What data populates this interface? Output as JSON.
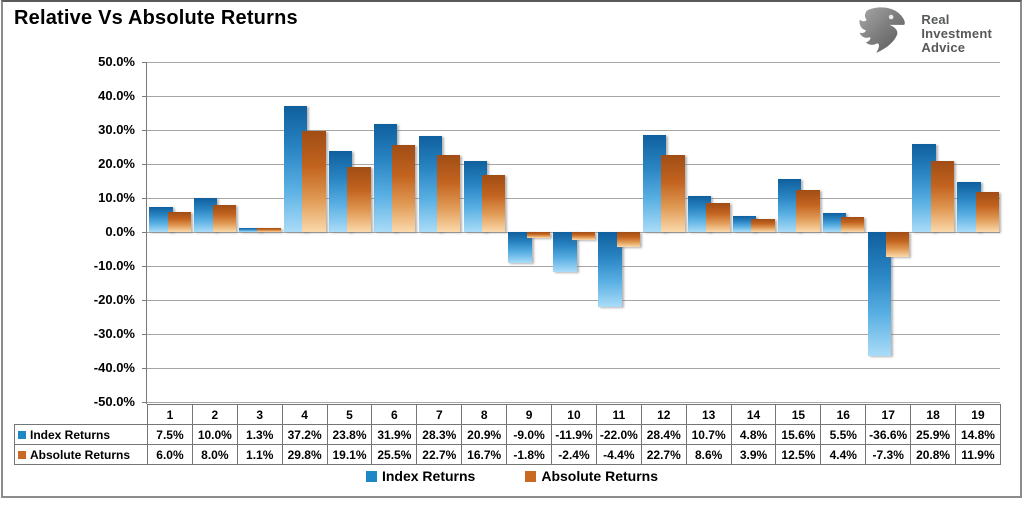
{
  "title": "Relative Vs Absolute Returns",
  "logo": {
    "name": "Real Investment Advice",
    "lines": [
      "Real",
      "Investment",
      "Advice"
    ]
  },
  "chart_data": {
    "type": "bar",
    "title": "Relative Vs Absolute Returns",
    "categories": [
      "1",
      "2",
      "3",
      "4",
      "5",
      "6",
      "7",
      "8",
      "9",
      "10",
      "11",
      "12",
      "13",
      "14",
      "15",
      "16",
      "17",
      "18",
      "19"
    ],
    "series": [
      {
        "name": "Index Returns",
        "color": "#1E88C7",
        "values": [
          7.5,
          10.0,
          1.3,
          37.2,
          23.8,
          31.9,
          28.3,
          20.9,
          -9.0,
          -11.9,
          -22.0,
          28.4,
          10.7,
          4.8,
          15.6,
          5.5,
          -36.6,
          25.9,
          14.8
        ]
      },
      {
        "name": "Absolute Returns",
        "color": "#C96A24",
        "values": [
          6.0,
          8.0,
          1.1,
          29.8,
          19.1,
          25.5,
          22.7,
          16.7,
          -1.8,
          -2.4,
          -4.4,
          22.7,
          8.6,
          3.9,
          12.5,
          4.4,
          -7.3,
          20.8,
          11.9
        ]
      }
    ],
    "ylim": [
      -50,
      50
    ],
    "ytick_step": 10,
    "ytick_suffix": "%",
    "grid": true,
    "legend_position": "bottom"
  },
  "table": {
    "rows": [
      {
        "label": "Index Returns",
        "swatch": "#1E88C7",
        "values": [
          "7.5%",
          "10.0%",
          "1.3%",
          "37.2%",
          "23.8%",
          "31.9%",
          "28.3%",
          "20.9%",
          "-9.0%",
          "-11.9%",
          "-22.0%",
          "28.4%",
          "10.7%",
          "4.8%",
          "15.6%",
          "5.5%",
          "-36.6%",
          "25.9%",
          "14.8%"
        ]
      },
      {
        "label": "Absolute Returns",
        "swatch": "#C96A24",
        "values": [
          "6.0%",
          "8.0%",
          "1.1%",
          "29.8%",
          "19.1%",
          "25.5%",
          "22.7%",
          "16.7%",
          "-1.8%",
          "-2.4%",
          "-4.4%",
          "22.7%",
          "8.6%",
          "3.9%",
          "12.5%",
          "4.4%",
          "-7.3%",
          "20.8%",
          "11.9%"
        ]
      }
    ]
  },
  "legend": {
    "items": [
      {
        "label": "Index Returns",
        "color": "#1E88C7"
      },
      {
        "label": "Absolute Returns",
        "color": "#C96A24"
      }
    ]
  }
}
